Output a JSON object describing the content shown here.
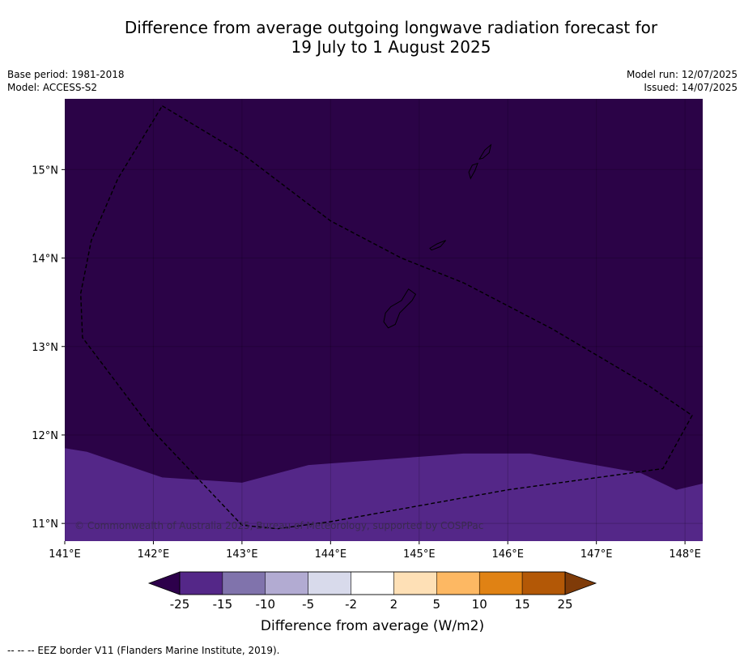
{
  "title": {
    "line1": "Difference from average outgoing longwave radiation forecast for",
    "line2": "19 July to 1 August 2025"
  },
  "meta": {
    "base_period": "Base period: 1981-2018",
    "model": "Model: ACCESS-S2",
    "model_run": "Model run: 12/07/2025",
    "issued": "Issued: 14/07/2025"
  },
  "map": {
    "lon_range": [
      141.0,
      148.2
    ],
    "lat_range": [
      10.8,
      15.8
    ],
    "lon_ticks": [
      {
        "value": 141,
        "label": "141°E"
      },
      {
        "value": 142,
        "label": "142°E"
      },
      {
        "value": 143,
        "label": "143°E"
      },
      {
        "value": 144,
        "label": "144°E"
      },
      {
        "value": 145,
        "label": "145°E"
      },
      {
        "value": 146,
        "label": "146°E"
      },
      {
        "value": 147,
        "label": "147°E"
      },
      {
        "value": 148,
        "label": "148°E"
      }
    ],
    "lat_ticks": [
      {
        "value": 15,
        "label": "15°N"
      },
      {
        "value": 14,
        "label": "14°N"
      },
      {
        "value": 13,
        "label": "13°N"
      },
      {
        "value": 12,
        "label": "12°N"
      },
      {
        "value": 11,
        "label": "11°N"
      }
    ],
    "background_color": "#2b0347",
    "south_band_color": "#542788",
    "south_band_boundary": [
      [
        141.0,
        11.85
      ],
      [
        141.25,
        11.81
      ],
      [
        142.1,
        11.52
      ],
      [
        143.0,
        11.46
      ],
      [
        143.75,
        11.66
      ],
      [
        145.5,
        11.79
      ],
      [
        146.25,
        11.79
      ],
      [
        147.5,
        11.57
      ],
      [
        147.9,
        11.38
      ],
      [
        148.2,
        11.45
      ]
    ],
    "eez_border": [
      [
        142.1,
        15.72
      ],
      [
        143.0,
        15.18
      ],
      [
        144.0,
        14.42
      ],
      [
        144.8,
        14.0
      ],
      [
        145.5,
        13.72
      ],
      [
        146.5,
        13.2
      ],
      [
        147.6,
        12.55
      ],
      [
        148.08,
        12.22
      ],
      [
        147.75,
        11.62
      ],
      [
        146.0,
        11.38
      ],
      [
        144.0,
        11.02
      ],
      [
        143.4,
        10.94
      ],
      [
        143.0,
        10.98
      ],
      [
        142.0,
        12.04
      ],
      [
        141.2,
        13.1
      ],
      [
        141.18,
        13.6
      ],
      [
        141.3,
        14.2
      ],
      [
        141.6,
        14.9
      ],
      [
        142.1,
        15.72
      ]
    ],
    "islands": [
      {
        "name": "Guam",
        "coords": [
          [
            144.65,
            13.21
          ],
          [
            144.73,
            13.25
          ],
          [
            144.78,
            13.38
          ],
          [
            144.92,
            13.52
          ],
          [
            144.96,
            13.59
          ],
          [
            144.88,
            13.65
          ],
          [
            144.8,
            13.52
          ],
          [
            144.68,
            13.45
          ],
          [
            144.62,
            13.38
          ],
          [
            144.6,
            13.28
          ]
        ]
      },
      {
        "name": "Rota",
        "coords": [
          [
            145.12,
            14.11
          ],
          [
            145.2,
            14.16
          ],
          [
            145.3,
            14.2
          ],
          [
            145.24,
            14.13
          ],
          [
            145.14,
            14.09
          ]
        ]
      },
      {
        "name": "Tinian",
        "coords": [
          [
            145.58,
            14.9
          ],
          [
            145.63,
            14.99
          ],
          [
            145.66,
            15.07
          ],
          [
            145.6,
            15.05
          ],
          [
            145.56,
            14.97
          ]
        ]
      },
      {
        "name": "Saipan",
        "coords": [
          [
            145.68,
            15.12
          ],
          [
            145.74,
            15.22
          ],
          [
            145.81,
            15.28
          ],
          [
            145.79,
            15.19
          ],
          [
            145.72,
            15.13
          ]
        ]
      }
    ],
    "copyright": "© Commonwealth of Australia 2025, Bureau of Meteorology, supported by COSPPac"
  },
  "colorbar": {
    "bounds": [
      "-25",
      "-15",
      "-10",
      "-5",
      "-2",
      "2",
      "5",
      "10",
      "15",
      "25"
    ],
    "colors": [
      "#542788",
      "#8073ac",
      "#b2abd2",
      "#d8daeb",
      "#ffffff",
      "#fee0b6",
      "#fdb863",
      "#e08214",
      "#b35806"
    ],
    "under_color": "#2d004b",
    "over_color": "#7f3b08",
    "label": "Difference from average (W/m2)"
  },
  "footer": "--  --  -- EEZ border V11 (Flanders Marine Institute, 2019)."
}
